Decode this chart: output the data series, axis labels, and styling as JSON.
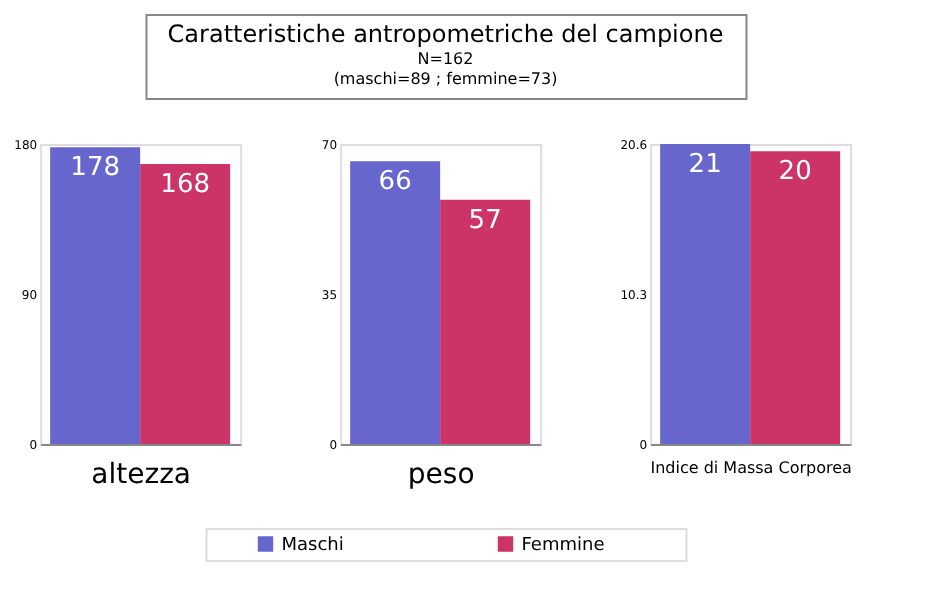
{
  "chart_data": [
    {
      "type": "other",
      "title": "Caratteristiche antropometriche del campione",
      "subtitle": "N=162",
      "annotations": [
        "(maschi=89 ; femmine=73)"
      ]
    },
    {
      "type": "bar",
      "categories": [
        null
      ],
      "xlabel": "altezza",
      "series": [
        {
          "name": "Maschi",
          "color": "#6666cc",
          "values": [
            178
          ]
        },
        {
          "name": "Femmine",
          "color": "#cc3366",
          "values": [
            168
          ]
        }
      ],
      "ylim": [
        0,
        180
      ],
      "yticks": [
        0,
        90,
        180
      ],
      "data_labels": true,
      "legend": "bottom"
    },
    {
      "type": "bar",
      "categories": [
        null
      ],
      "xlabel": "peso",
      "series": [
        {
          "name": "Maschi",
          "color": "#6666cc",
          "values": [
            66
          ]
        },
        {
          "name": "Femmine",
          "color": "#cc3366",
          "values": [
            57
          ]
        }
      ],
      "ylim": [
        0,
        70
      ],
      "yticks": [
        0,
        35,
        70
      ],
      "data_labels": true,
      "legend": "bottom"
    },
    {
      "type": "bar",
      "categories": [
        null
      ],
      "xlabel": "Indice di Massa Corporea",
      "series": [
        {
          "name": "Maschi",
          "color": "#6666cc",
          "values": [
            20.6
          ],
          "value_labels": [
            "21"
          ]
        },
        {
          "name": "Femmine",
          "color": "#cc3366",
          "values": [
            20.1
          ],
          "value_labels": [
            "20"
          ]
        }
      ],
      "ylim": [
        0,
        20.6
      ],
      "yticks": [
        0,
        10.3,
        20.6
      ],
      "legend": "bottom"
    }
  ]
}
